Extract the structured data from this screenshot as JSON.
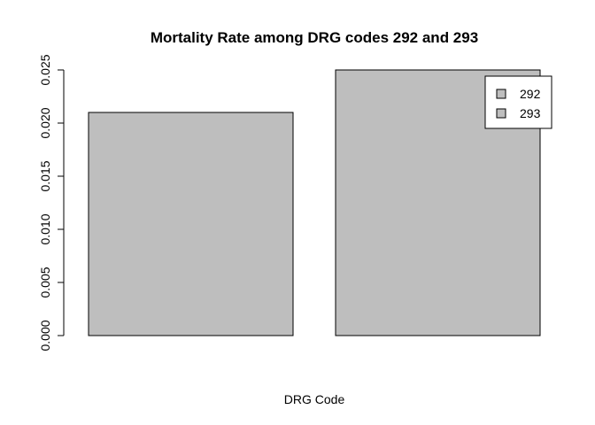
{
  "chart_data": {
    "type": "bar",
    "title": "Mortality Rate among DRG codes 292 and 293",
    "xlabel": "DRG Code",
    "ylabel": "",
    "categories": [
      "292",
      "293"
    ],
    "values": [
      0.021,
      0.025
    ],
    "ylim": [
      0,
      0.025
    ],
    "yticks": [
      "0.000",
      "0.005",
      "0.010",
      "0.015",
      "0.020",
      "0.025"
    ],
    "grid": false,
    "legend": {
      "position": "top-right",
      "entries": [
        "292",
        "293"
      ]
    },
    "colors": {
      "bar_fill": "#bebebe",
      "bar_stroke": "#000000"
    }
  }
}
